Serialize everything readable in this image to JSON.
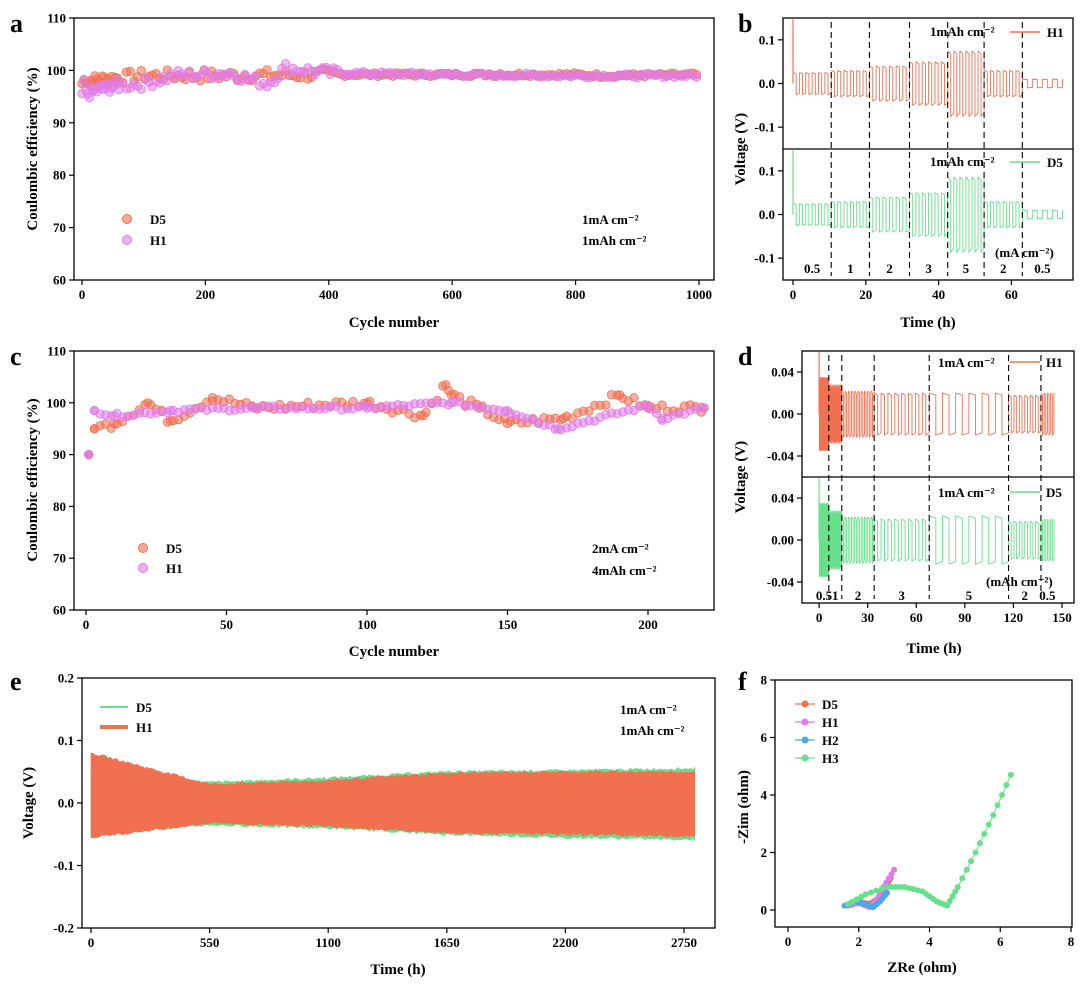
{
  "colors": {
    "d5": "#f07050",
    "h1": "#e07be8",
    "h1_line": "#f07050",
    "d5_line": "#66e08a",
    "h2": "#4aa8e8",
    "h3": "#66e08a"
  },
  "chart_data": [
    {
      "panel": "a",
      "type": "scatter",
      "xlabel": "Cycle number",
      "ylabel": "Coulombic efficiency (%)",
      "xlim": [
        0,
        1000
      ],
      "ylim": [
        60,
        110
      ],
      "xticks": [
        "0",
        "200",
        "400",
        "600",
        "800",
        "1000"
      ],
      "yticks": [
        "60",
        "70",
        "80",
        "90",
        "100",
        "110"
      ],
      "legend": [
        "D5",
        "H1"
      ],
      "annotations": [
        "1mA cm⁻²",
        "1mAh cm⁻²"
      ],
      "series": [
        {
          "name": "D5",
          "x": [
            0,
            5,
            10,
            50,
            100,
            200,
            400,
            600,
            800,
            850,
            1000
          ],
          "values": [
            97.5,
            98.5,
            98.0,
            98.5,
            99.0,
            99.0,
            99.2,
            99.2,
            99.2,
            99.0,
            99.2
          ]
        },
        {
          "name": "H1",
          "x": [
            0,
            2,
            5,
            50,
            100,
            150,
            240,
            300,
            330,
            400,
            600,
            800,
            1000
          ],
          "values": [
            94.5,
            99.0,
            95.5,
            97.0,
            97.5,
            99.0,
            99.5,
            97.5,
            100.5,
            99.5,
            99.2,
            99.0,
            99.0
          ]
        }
      ]
    },
    {
      "panel": "b",
      "type": "line",
      "xlabel": "Time (h)",
      "ylabel": "Voltage (V)",
      "xlim": [
        0,
        75
      ],
      "ylim": [
        -0.15,
        0.15
      ],
      "xticks": [
        "0",
        "20",
        "40",
        "60"
      ],
      "yticks": [
        "-0.1",
        "0.0",
        "0.1"
      ],
      "subplots": [
        {
          "name": "H1",
          "legend": "H1",
          "annotation": "1mAh cm⁻²"
        },
        {
          "name": "D5",
          "legend": "D5",
          "annotation": "1mAh cm⁻²"
        }
      ],
      "rate_labels": [
        "0.5",
        "1",
        "2",
        "3",
        "5",
        "2",
        "0.5"
      ],
      "rate_unit": "(mA cm⁻²)",
      "segments": [
        {
          "rate": 0.5,
          "t0": 0,
          "t1": 10.5,
          "amp": 0.025
        },
        {
          "rate": 1,
          "t0": 10.5,
          "t1": 21,
          "amp": 0.03
        },
        {
          "rate": 2,
          "t0": 21,
          "t1": 32,
          "amp": 0.04
        },
        {
          "rate": 3,
          "t0": 32,
          "t1": 42.5,
          "amp": 0.05
        },
        {
          "rate": 5,
          "t0": 42.5,
          "t1": 52.5,
          "amp": 0.075
        },
        {
          "rate": 2,
          "t0": 52.5,
          "t1": 63,
          "amp": 0.03
        },
        {
          "rate": 0.5,
          "t0": 63,
          "t1": 74,
          "amp": 0.01
        }
      ]
    },
    {
      "panel": "c",
      "type": "scatter",
      "xlabel": "Cycle number",
      "ylabel": "Coulombic efficiency (%)",
      "xlim": [
        -5,
        225
      ],
      "ylim": [
        60,
        110
      ],
      "xticks": [
        "0",
        "50",
        "100",
        "150",
        "200"
      ],
      "yticks": [
        "60",
        "70",
        "80",
        "90",
        "100",
        "110"
      ],
      "legend": [
        "D5",
        "H1"
      ],
      "annotations": [
        "2mA cm⁻²",
        "4mAh cm⁻²"
      ],
      "series": [
        {
          "name": "D5",
          "x": [
            1,
            3,
            10,
            22,
            30,
            45,
            60,
            100,
            120,
            128,
            130,
            140,
            150,
            170,
            190,
            200,
            220
          ],
          "values": [
            90.0,
            95.0,
            96.0,
            100.0,
            96.5,
            101.0,
            99.0,
            100.0,
            97.5,
            103.5,
            101.5,
            99.0,
            96.0,
            97.0,
            101.5,
            99.0,
            99.0
          ]
        },
        {
          "name": "H1",
          "x": [
            1,
            3,
            10,
            30,
            60,
            100,
            130,
            150,
            168,
            200,
            205,
            220
          ],
          "values": [
            90.0,
            98.5,
            97.5,
            98.5,
            99.0,
            99.0,
            100.0,
            98.5,
            95.0,
            99.5,
            97.0,
            99.0
          ]
        }
      ]
    },
    {
      "panel": "d",
      "type": "line",
      "xlabel": "Time (h)",
      "ylabel": "Voltage (V)",
      "xlim": [
        -5,
        150
      ],
      "ylim": [
        -0.06,
        0.06
      ],
      "xticks": [
        "0",
        "30",
        "60",
        "90",
        "120",
        "150"
      ],
      "yticks": [
        "-0.04",
        "0.00",
        "0.04"
      ],
      "subplots": [
        {
          "name": "H1",
          "legend": "H1",
          "annotation": "1mA cm⁻²"
        },
        {
          "name": "D5",
          "legend": "D5",
          "annotation": "1mA cm⁻²"
        }
      ],
      "rate_labels": [
        "0.5",
        "1",
        "2",
        "3",
        "5",
        "2",
        "0.5"
      ],
      "rate_unit": "(mAh cm⁻²)",
      "segments": [
        {
          "rate": 0.5,
          "t0": 0,
          "t1": 6,
          "amp": 0.035
        },
        {
          "rate": 1,
          "t0": 6,
          "t1": 14,
          "amp": 0.028
        },
        {
          "rate": 2,
          "t0": 14,
          "t1": 34,
          "amp": 0.022
        },
        {
          "rate": 3,
          "t0": 34,
          "t1": 68,
          "amp": 0.02
        },
        {
          "rate": 5,
          "t0": 68,
          "t1": 117,
          "amp": 0.02
        },
        {
          "rate": 2,
          "t0": 117,
          "t1": 137,
          "amp": 0.018
        },
        {
          "rate": 0.5,
          "t0": 137,
          "t1": 145,
          "amp": 0.02
        }
      ]
    },
    {
      "panel": "e",
      "type": "area",
      "xlabel": "Time (h)",
      "ylabel": "Voltage (V)",
      "xlim": [
        -30,
        2830
      ],
      "ylim": [
        -0.2,
        0.2
      ],
      "xticks": [
        "0",
        "550",
        "1100",
        "1650",
        "2200",
        "2750"
      ],
      "yticks": [
        "-0.2",
        "-0.1",
        "0.0",
        "0.1",
        "0.2"
      ],
      "legend": [
        "D5",
        "H1"
      ],
      "annotations": [
        "1mA cm⁻²",
        "1mAh cm⁻²"
      ],
      "series": [
        {
          "name": "D5",
          "x": [
            0,
            550,
            1100,
            1650,
            2200,
            2750,
            2800
          ],
          "upper": [
            0.05,
            0.033,
            0.04,
            0.05,
            0.052,
            0.055,
            0.055
          ],
          "lower": [
            -0.05,
            -0.035,
            -0.04,
            -0.05,
            -0.055,
            -0.058,
            -0.058
          ]
        },
        {
          "name": "H1",
          "x": [
            0,
            550,
            1100,
            1650,
            2200,
            2750,
            2800
          ],
          "upper": [
            0.08,
            0.03,
            0.036,
            0.048,
            0.05,
            0.05,
            0.05
          ],
          "lower": [
            -0.055,
            -0.032,
            -0.037,
            -0.048,
            -0.05,
            -0.053,
            -0.053
          ]
        }
      ]
    },
    {
      "panel": "f",
      "type": "scatter",
      "xlabel": "ZRe (ohm)",
      "ylabel": "-Zim (ohm)",
      "xlim": [
        0,
        8
      ],
      "ylim": [
        -0.5,
        8
      ],
      "xticks": [
        "0",
        "2",
        "4",
        "6",
        "8"
      ],
      "yticks": [
        "0",
        "2",
        "4",
        "6",
        "8"
      ],
      "legend": [
        "D5",
        "H1",
        "H2",
        "H3"
      ],
      "series": [
        {
          "name": "D5",
          "x": [
            1.7,
            2.0,
            2.3,
            2.5,
            2.7,
            2.9
          ],
          "values": [
            0.15,
            0.3,
            0.2,
            0.35,
            0.7,
            1.1
          ]
        },
        {
          "name": "H1",
          "x": [
            1.7,
            2.0,
            2.3,
            2.5,
            2.7,
            3.0
          ],
          "values": [
            0.15,
            0.25,
            0.1,
            0.3,
            0.8,
            1.4
          ]
        },
        {
          "name": "H2",
          "x": [
            1.6,
            1.9,
            2.2,
            2.4,
            2.6,
            2.8
          ],
          "values": [
            0.15,
            0.3,
            0.2,
            0.1,
            0.3,
            0.6
          ]
        },
        {
          "name": "H3",
          "x": [
            1.7,
            2.2,
            2.8,
            3.3,
            3.8,
            4.2,
            4.5,
            4.8,
            5.3,
            5.8,
            6.3
          ],
          "values": [
            0.2,
            0.55,
            0.8,
            0.8,
            0.65,
            0.3,
            0.15,
            0.8,
            2.0,
            3.3,
            4.7
          ]
        }
      ]
    }
  ]
}
